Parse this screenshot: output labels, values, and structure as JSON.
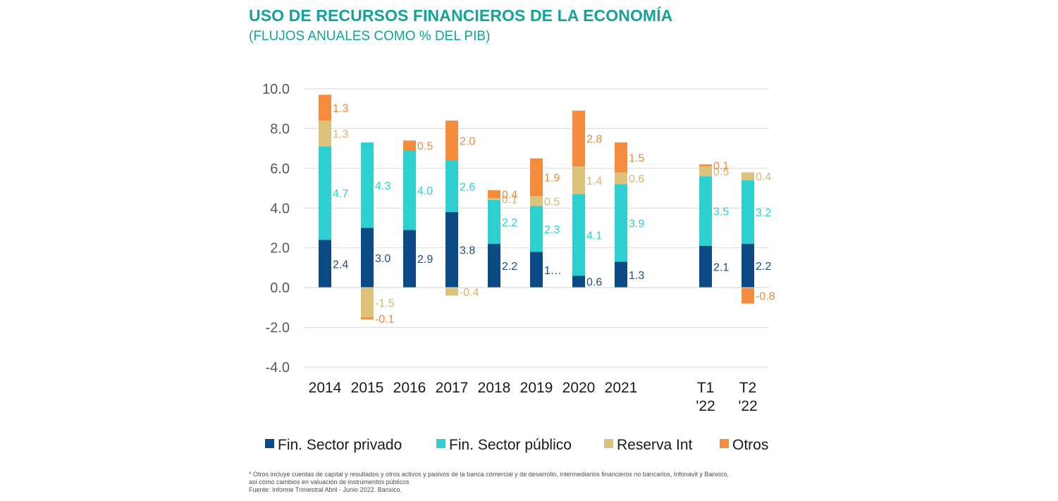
{
  "title": "USO DE RECURSOS FINANCIEROS DE LA ECONOMÍA",
  "subtitle": "(FLUJOS ANUALES COMO % DEL PIB)",
  "footnote": {
    "line1": "* Otros incluye cuentas de capital y resultados y otros activos y pasivos de la banca comercial y de desarrollo, intermediarios financieros no bancarios, Infonavit y Banxico,",
    "line2": "así como cambios en valuación de instrumentos públicos",
    "line3": "Fuente: Informe Trimestral Abril - Junio 2022. Banxico."
  },
  "chart_data": {
    "type": "bar",
    "stacked": true,
    "title": "USO DE RECURSOS FINANCIEROS DE LA ECONOMÍA",
    "subtitle": "(FLUJOS ANUALES COMO % DEL PIB)",
    "xlabel": "",
    "ylabel": "",
    "ylim": [
      -4.0,
      10.0
    ],
    "yticks": [
      "10.0",
      "8.0",
      "6.0",
      "4.0",
      "2.0",
      "0.0",
      "-2.0",
      "-4.0"
    ],
    "grid": true,
    "legend_position": "bottom",
    "categories": [
      "2014",
      "2015",
      "2016",
      "2017",
      "2018",
      "2019",
      "2020",
      "2021",
      "T1 '22",
      "T2 '22"
    ],
    "category_lines": [
      [
        "2014"
      ],
      [
        "2015"
      ],
      [
        "2016"
      ],
      [
        "2017"
      ],
      [
        "2018"
      ],
      [
        "2019"
      ],
      [
        "2020"
      ],
      [
        "2021"
      ],
      [
        "T1",
        "'22"
      ],
      [
        "T2",
        "'22"
      ]
    ],
    "series": [
      {
        "name": "Fin. Sector privado",
        "color": "#0b4a85",
        "label_color": "#1f4e79",
        "values": [
          2.4,
          3.0,
          2.9,
          3.8,
          2.2,
          1.8,
          0.6,
          1.3,
          2.1,
          2.2
        ],
        "labels": [
          "2.4",
          "3.0",
          "2.9",
          "3.8",
          "2.2",
          "1…",
          "0.6",
          "1.3",
          "2.1",
          "2.2"
        ]
      },
      {
        "name": "Fin. Sector público",
        "color": "#2ecfd0",
        "label_color": "#2ecfd0",
        "values": [
          4.7,
          4.3,
          4.0,
          2.6,
          2.2,
          2.3,
          4.1,
          3.9,
          3.5,
          3.2
        ],
        "labels": [
          "4.7",
          "4.3",
          "4.0",
          "2.6",
          "2.2",
          "2.3",
          "4.1",
          "3.9",
          "3.5",
          "3.2"
        ]
      },
      {
        "name": "Reserva Int",
        "color": "#dcc27b",
        "label_color": "#d8b56a",
        "values": [
          1.3,
          -1.5,
          0.0,
          -0.4,
          0.1,
          0.5,
          1.4,
          0.6,
          0.5,
          0.4
        ],
        "labels": [
          "1.3",
          "-1.5",
          "",
          "-0.4",
          "0.1",
          "0.5",
          "1.4",
          "0.6",
          "0.5",
          "0.4"
        ]
      },
      {
        "name": "Otros",
        "color": "#f58c3d",
        "label_color": "#ef8a3c",
        "values": [
          1.3,
          -0.1,
          0.5,
          2.0,
          0.4,
          1.9,
          2.8,
          1.5,
          0.1,
          -0.8
        ],
        "labels": [
          "1.3",
          "-0.1",
          "0.5",
          "2.0",
          "0.4",
          "1.9",
          "2.8",
          "1.5",
          "0.1",
          "-0.8"
        ]
      }
    ]
  }
}
